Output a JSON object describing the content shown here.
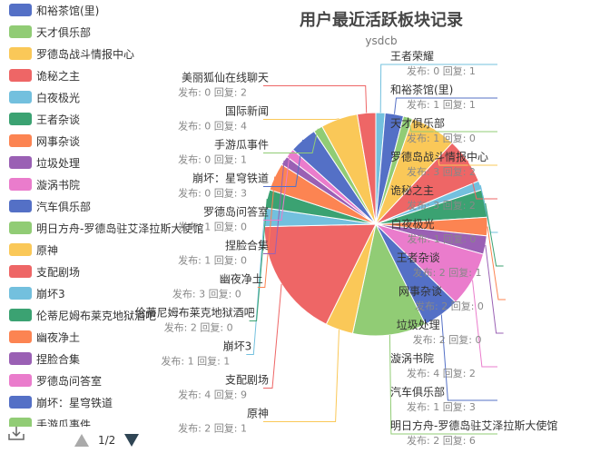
{
  "chart_data": {
    "type": "pie",
    "title": "用户最近活跃板块记录",
    "subtitle": "ysdcb",
    "label_format": "发布: {p} 回复: {r}",
    "slices": [
      {
        "name": "王者荣耀",
        "posts": 0,
        "replies": 1,
        "color": "#73c0de"
      },
      {
        "name": "和裕茶馆(里)",
        "posts": 1,
        "replies": 1,
        "color": "#5470c6"
      },
      {
        "name": "天才俱乐部",
        "posts": 1,
        "replies": 0,
        "color": "#91cc75"
      },
      {
        "name": "罗德岛战斗情报中心",
        "posts": 3,
        "replies": 2,
        "color": "#fac858"
      },
      {
        "name": "诡秘之主",
        "posts": 3,
        "replies": 2,
        "color": "#ee6666"
      },
      {
        "name": "白夜极光",
        "posts": 1,
        "replies": 0,
        "color": "#73c0de"
      },
      {
        "name": "王者杂谈",
        "posts": 2,
        "replies": 1,
        "color": "#3ba272"
      },
      {
        "name": "网事杂谈",
        "posts": 2,
        "replies": 0,
        "color": "#fc8452"
      },
      {
        "name": "垃圾处理",
        "posts": 2,
        "replies": 0,
        "color": "#9a60b4"
      },
      {
        "name": "漩涡书院",
        "posts": 4,
        "replies": 2,
        "color": "#ea7ccc"
      },
      {
        "name": "汽车俱乐部",
        "posts": 1,
        "replies": 3,
        "color": "#5470c6"
      },
      {
        "name": "明日方舟-罗德岛驻艾泽拉斯大使馆",
        "posts": 2,
        "replies": 6,
        "color": "#91cc75"
      },
      {
        "name": "原神",
        "posts": 2,
        "replies": 1,
        "color": "#fac858"
      },
      {
        "name": "支配剧场",
        "posts": 4,
        "replies": 9,
        "color": "#ee6666"
      },
      {
        "name": "崩坏3",
        "posts": 1,
        "replies": 1,
        "color": "#73c0de"
      },
      {
        "name": "伦蒂尼姆布莱克地狱酒吧",
        "posts": 2,
        "replies": 0,
        "color": "#3ba272"
      },
      {
        "name": "幽夜净土",
        "posts": 3,
        "replies": 0,
        "color": "#fc8452"
      },
      {
        "name": "捏脸合集",
        "posts": 1,
        "replies": 0,
        "color": "#9a60b4"
      },
      {
        "name": "罗德岛问答室",
        "posts": 1,
        "replies": 0,
        "color": "#ea7ccc"
      },
      {
        "name": "崩坏：星穹铁道",
        "posts": 0,
        "replies": 3,
        "color": "#5470c6"
      },
      {
        "name": "手游瓜事件",
        "posts": 0,
        "replies": 1,
        "color": "#91cc75"
      },
      {
        "name": "国际新闻",
        "posts": 0,
        "replies": 4,
        "color": "#fac858"
      },
      {
        "name": "美丽狐仙在线聊天",
        "posts": 0,
        "replies": 2,
        "color": "#ee6666"
      }
    ],
    "legend": {
      "position": "left",
      "items": [
        "和裕茶馆(里)",
        "天才俱乐部",
        "罗德岛战斗情报中心",
        "诡秘之主",
        "白夜极光",
        "王者杂谈",
        "网事杂谈",
        "垃圾处理",
        "漩涡书院",
        "汽车俱乐部",
        "明日方舟-罗德岛驻艾泽拉斯大使馆",
        "原神",
        "支配剧场",
        "崩坏3",
        "伦蒂尼姆布莱克地狱酒吧",
        "幽夜净土",
        "捏脸合集",
        "罗德岛问答室",
        "崩坏：星穹铁道",
        "手游瓜事件"
      ],
      "page": "1/2"
    }
  }
}
